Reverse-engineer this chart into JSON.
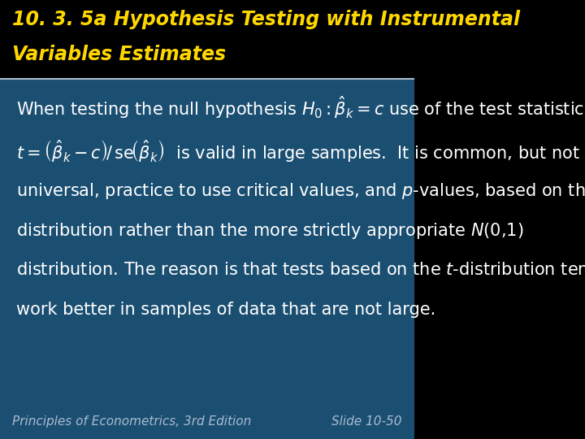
{
  "title_line1": "10. 3. 5a Hypothesis Testing with Instrumental",
  "title_line2": "Variables Estimates",
  "title_color": "#FFD700",
  "title_bg_color": "#000000",
  "body_bg_color": "#1B4F72",
  "body_text_color": "#FFFFFF",
  "footer_text_left": "Principles of Econometrics, 3rd Edition",
  "footer_text_right": "Slide 10-50",
  "footer_color": "#AABBD0",
  "divider_color": "#AABBCC",
  "line1_plain": "When testing the null hypothesis ",
  "line1_math": "H_0 : \\hat{\\beta}_k = c",
  "line1_after": " use of the test statistic",
  "line2_math": "t = \\left(\\hat{\\beta}_k - c\\right)/ \\mathrm{se}\\left(\\hat{\\beta}_k\\right)",
  "line2_after": "is valid in large samples. It is common, but not",
  "line3": "universal, practice to use critical values, and $p$-values, based on the",
  "line4": "distribution rather than the more strictly appropriate $N$(0,1)",
  "line5": "distribution. The reason is that tests based on the $t$-distribution tend to",
  "line6": "work better in samples of data that are not large.",
  "body_fontsize": 15,
  "title_fontsize": 17,
  "footer_fontsize": 11
}
